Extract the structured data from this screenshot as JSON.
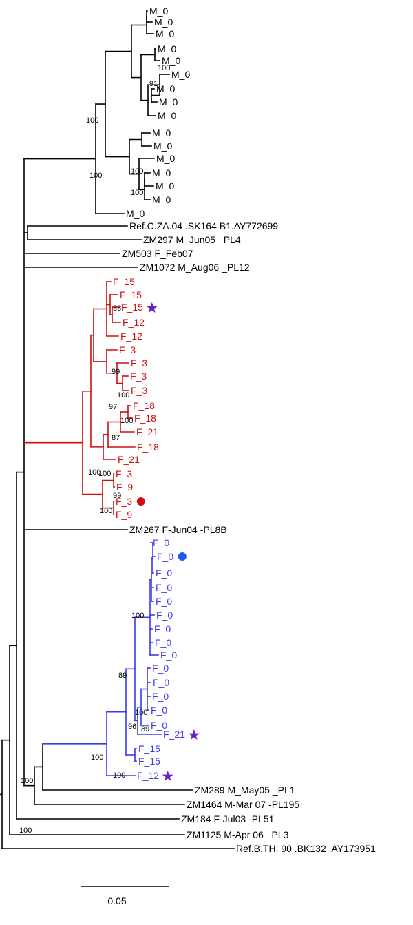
{
  "colors": {
    "black": "#000000",
    "red": "#cc1111",
    "blue": "#3a3af0",
    "star": "#6a1fc8",
    "dot_red": "#cc1111",
    "dot_blue": "#1f5af0"
  },
  "leaves": [
    {
      "id": "m01",
      "label": "M_0",
      "color": "black"
    },
    {
      "id": "m02",
      "label": "M_0",
      "color": "black"
    },
    {
      "id": "m03",
      "label": "M_0",
      "color": "black"
    },
    {
      "id": "m04",
      "label": "M_0",
      "color": "black"
    },
    {
      "id": "m05",
      "label": "M_0",
      "color": "black"
    },
    {
      "id": "m06",
      "label": "M_0",
      "color": "black"
    },
    {
      "id": "m07",
      "label": "M_0",
      "color": "black"
    },
    {
      "id": "m08",
      "label": "M_0",
      "color": "black"
    },
    {
      "id": "m09",
      "label": "M_0",
      "color": "black"
    },
    {
      "id": "m10",
      "label": "M_0",
      "color": "black"
    },
    {
      "id": "m11",
      "label": "M_0",
      "color": "black"
    },
    {
      "id": "m12",
      "label": "M_0",
      "color": "black"
    },
    {
      "id": "m13",
      "label": "M_0",
      "color": "black"
    },
    {
      "id": "m14",
      "label": "M_0",
      "color": "black"
    },
    {
      "id": "m15",
      "label": "M_0",
      "color": "black"
    },
    {
      "id": "m16",
      "label": "M_0",
      "color": "black"
    },
    {
      "id": "ref_c",
      "label": "Ref.C.ZA.04 .SK164 B1.AY772699",
      "color": "black"
    },
    {
      "id": "zm297",
      "label": "ZM297 M_Jun05 _PL4",
      "color": "black"
    },
    {
      "id": "zm503",
      "label": "ZM503 F_Feb07",
      "color": "black"
    },
    {
      "id": "zm1072",
      "label": "ZM1072 M_Aug06 _PL12",
      "color": "black"
    },
    {
      "id": "r01",
      "label": "F_15",
      "color": "red"
    },
    {
      "id": "r02",
      "label": "F_15",
      "color": "red"
    },
    {
      "id": "r03",
      "label": "F_15",
      "color": "red",
      "marker": "star"
    },
    {
      "id": "r04",
      "label": "F_12",
      "color": "red"
    },
    {
      "id": "r05",
      "label": "F_12",
      "color": "red"
    },
    {
      "id": "r06",
      "label": "F_3",
      "color": "red"
    },
    {
      "id": "r07",
      "label": "F_3",
      "color": "red"
    },
    {
      "id": "r08",
      "label": "F_3",
      "color": "red"
    },
    {
      "id": "r09",
      "label": "F_3",
      "color": "red"
    },
    {
      "id": "r10",
      "label": "F_18",
      "color": "red"
    },
    {
      "id": "r11",
      "label": "F_18",
      "color": "red"
    },
    {
      "id": "r12",
      "label": "F_21",
      "color": "red"
    },
    {
      "id": "r13",
      "label": "F_18",
      "color": "red"
    },
    {
      "id": "r14",
      "label": "F_21",
      "color": "red"
    },
    {
      "id": "r15",
      "label": "F_3",
      "color": "red"
    },
    {
      "id": "r16",
      "label": "F_9",
      "color": "red"
    },
    {
      "id": "r17",
      "label": "F_3",
      "color": "red",
      "marker": "dot"
    },
    {
      "id": "r18",
      "label": "F_9",
      "color": "red"
    },
    {
      "id": "zm267",
      "label": "ZM267 F-Jun04 -PL8B",
      "color": "black"
    },
    {
      "id": "b01",
      "label": "F_0",
      "color": "blue"
    },
    {
      "id": "b02",
      "label": "F_0",
      "color": "blue",
      "marker": "dot"
    },
    {
      "id": "b03",
      "label": "F_0",
      "color": "blue"
    },
    {
      "id": "b04",
      "label": "F_0",
      "color": "blue"
    },
    {
      "id": "b05",
      "label": "F_0",
      "color": "blue"
    },
    {
      "id": "b06",
      "label": "F_0",
      "color": "blue"
    },
    {
      "id": "b07",
      "label": "F_0",
      "color": "blue"
    },
    {
      "id": "b08",
      "label": "F_0",
      "color": "blue"
    },
    {
      "id": "b09",
      "label": "F_0",
      "color": "blue"
    },
    {
      "id": "b10",
      "label": "F_0",
      "color": "blue"
    },
    {
      "id": "b11",
      "label": "F_0",
      "color": "blue"
    },
    {
      "id": "b12",
      "label": "F_0",
      "color": "blue"
    },
    {
      "id": "b13",
      "label": "F_0",
      "color": "blue"
    },
    {
      "id": "b14",
      "label": "F_0",
      "color": "blue"
    },
    {
      "id": "b15",
      "label": "F_21",
      "color": "blue",
      "marker": "star"
    },
    {
      "id": "b16",
      "label": "F_15",
      "color": "blue"
    },
    {
      "id": "b17",
      "label": "F_15",
      "color": "blue"
    },
    {
      "id": "b18",
      "label": "F_12",
      "color": "blue",
      "marker": "star"
    },
    {
      "id": "zm289",
      "label": "ZM289 M_May05 _PL1",
      "color": "black"
    },
    {
      "id": "zm1464",
      "label": "ZM1464 M-Mar 07 -PL195",
      "color": "black"
    },
    {
      "id": "zm184",
      "label": "ZM184 F-Jul03 -PL51",
      "color": "black"
    },
    {
      "id": "zm1125",
      "label": "ZM1125 M-Apr 06 _PL3",
      "color": "black"
    },
    {
      "id": "ref_b",
      "label": "Ref.B.TH. 90 .BK132 .AY173951",
      "color": "black"
    }
  ],
  "bootstrap": [
    {
      "node": "m_upper",
      "value": "100"
    },
    {
      "node": "m_91",
      "value": "91"
    },
    {
      "node": "m_group",
      "value": "100"
    },
    {
      "node": "m_lower",
      "value": "100"
    },
    {
      "node": "m_lower_a",
      "value": "100"
    },
    {
      "node": "m_lower_b",
      "value": "100"
    },
    {
      "node": "r_88",
      "value": "88"
    },
    {
      "node": "r_99",
      "value": "99"
    },
    {
      "node": "r_100a",
      "value": "100"
    },
    {
      "node": "r_97",
      "value": "97"
    },
    {
      "node": "r_100b",
      "value": "100"
    },
    {
      "node": "r_87",
      "value": "87"
    },
    {
      "node": "r_main",
      "value": "100"
    },
    {
      "node": "r_100c",
      "value": "100"
    },
    {
      "node": "r_99b",
      "value": "99"
    },
    {
      "node": "r_100d",
      "value": "100"
    },
    {
      "node": "b_100a",
      "value": "100"
    },
    {
      "node": "b_89",
      "value": "89"
    },
    {
      "node": "b_100b",
      "value": "100"
    },
    {
      "node": "b_96",
      "value": "96"
    },
    {
      "node": "b_89b",
      "value": "89"
    },
    {
      "node": "b_main",
      "value": "100"
    },
    {
      "node": "b_100c",
      "value": "100"
    },
    {
      "node": "outer_100",
      "value": "100"
    },
    {
      "node": "outer_100b",
      "value": "100"
    }
  ],
  "scale_bar": {
    "value": 0.05,
    "label": "0.05"
  }
}
